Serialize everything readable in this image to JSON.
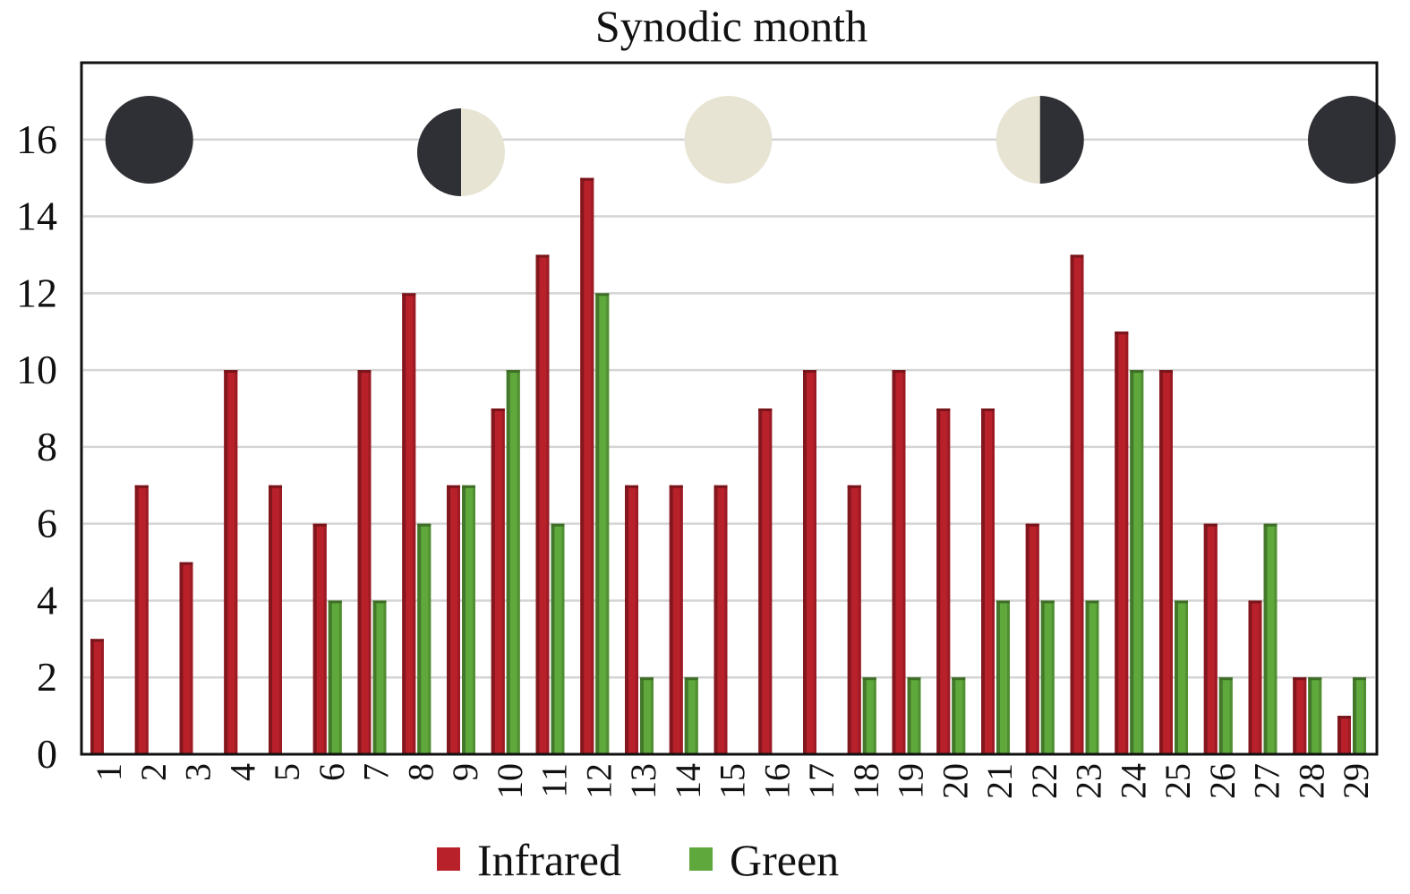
{
  "chart_data": {
    "type": "bar",
    "title": "Synodic month",
    "xlabel": "",
    "ylabel": "",
    "ylim": [
      0,
      18
    ],
    "yticks": [
      "0",
      "2",
      "4",
      "6",
      "8",
      "10",
      "12",
      "14",
      "16"
    ],
    "grid": true,
    "legend_position": "bottom",
    "categories": [
      "1",
      "2",
      "3",
      "4",
      "5",
      "6",
      "7",
      "8",
      "9",
      "10",
      "11",
      "12",
      "13",
      "14",
      "15",
      "16",
      "17",
      "18",
      "19",
      "20",
      "21",
      "22",
      "23",
      "24",
      "25",
      "26",
      "27",
      "28",
      "29"
    ],
    "series": [
      {
        "name": "Infrared",
        "color": "#b8202a",
        "values": [
          3,
          7,
          5,
          10,
          7,
          6,
          10,
          12,
          7,
          9,
          13,
          15,
          7,
          7,
          7,
          9,
          10,
          7,
          10,
          9,
          9,
          6,
          13,
          11,
          10,
          6,
          4,
          2,
          1
        ]
      },
      {
        "name": "Green",
        "color": "#5fa83c",
        "values": [
          0,
          0,
          0,
          0,
          0,
          4,
          4,
          6,
          7,
          10,
          6,
          12,
          2,
          2,
          0,
          0,
          0,
          2,
          2,
          2,
          4,
          4,
          4,
          10,
          4,
          2,
          6,
          2,
          2
        ]
      }
    ],
    "moon_phases": [
      {
        "day": "2",
        "phase": "new-moon-icon"
      },
      {
        "day": "9",
        "phase": "first-quarter-icon"
      },
      {
        "day": "15",
        "phase": "full-moon-icon"
      },
      {
        "day": "22",
        "phase": "last-quarter-icon"
      },
      {
        "day": "29",
        "phase": "new-moon-icon"
      }
    ],
    "moon_colors": {
      "dark": "#2f3035",
      "light": "#e8e4d4"
    }
  }
}
